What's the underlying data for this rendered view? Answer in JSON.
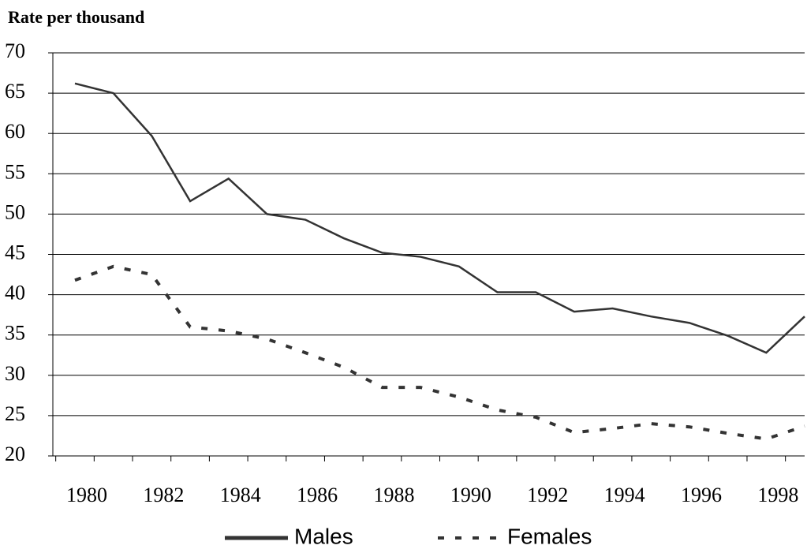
{
  "chart_data": {
    "type": "line",
    "title": "Rate per thousand",
    "categories": [
      "1980",
      null,
      "1982",
      null,
      "1984",
      null,
      "1986",
      null,
      "1988",
      null,
      "1990",
      null,
      "1992",
      null,
      "1994",
      null,
      "1996",
      null,
      "1998",
      null
    ],
    "series": [
      {
        "name": "Males",
        "color": "#333333",
        "dash": "solid",
        "values": [
          66.2,
          65.0,
          59.7,
          51.6,
          54.4,
          50.0,
          49.3,
          47.0,
          45.2,
          44.7,
          43.5,
          40.3,
          40.3,
          37.9,
          38.3,
          37.3,
          36.5,
          34.9,
          32.8,
          37.3
        ]
      },
      {
        "name": "Females",
        "color": "#333333",
        "dash": "dashed",
        "values": [
          41.8,
          43.5,
          42.5,
          36.0,
          35.5,
          34.5,
          32.8,
          31.0,
          28.5,
          28.5,
          27.3,
          25.7,
          24.8,
          22.9,
          23.4,
          24.0,
          23.6,
          22.8,
          22.1,
          23.7
        ]
      }
    ],
    "ylim": [
      20,
      70
    ],
    "yticks": [
      20,
      25,
      30,
      35,
      40,
      45,
      50,
      55,
      60,
      65,
      70
    ],
    "grid": true,
    "legend": "bottom"
  }
}
